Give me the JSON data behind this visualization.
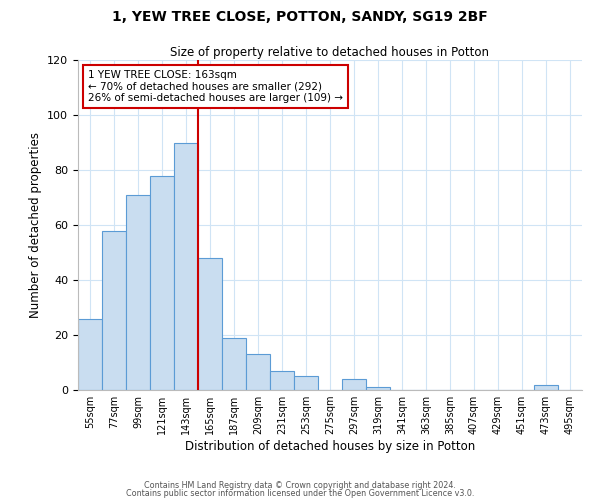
{
  "title_line1": "1, YEW TREE CLOSE, POTTON, SANDY, SG19 2BF",
  "title_line2": "Size of property relative to detached houses in Potton",
  "xlabel": "Distribution of detached houses by size in Potton",
  "ylabel": "Number of detached properties",
  "bar_labels": [
    "55sqm",
    "77sqm",
    "99sqm",
    "121sqm",
    "143sqm",
    "165sqm",
    "187sqm",
    "209sqm",
    "231sqm",
    "253sqm",
    "275sqm",
    "297sqm",
    "319sqm",
    "341sqm",
    "363sqm",
    "385sqm",
    "407sqm",
    "429sqm",
    "451sqm",
    "473sqm",
    "495sqm"
  ],
  "bar_values": [
    26,
    58,
    71,
    78,
    90,
    48,
    19,
    13,
    7,
    5,
    0,
    4,
    1,
    0,
    0,
    0,
    0,
    0,
    0,
    2,
    0
  ],
  "bar_color": "#c9ddf0",
  "bar_edge_color": "#5b9bd5",
  "marker_bar_index": 5,
  "marker_color": "#cc0000",
  "ylim": [
    0,
    120
  ],
  "yticks": [
    0,
    20,
    40,
    60,
    80,
    100,
    120
  ],
  "annotation_title": "1 YEW TREE CLOSE: 163sqm",
  "annotation_line2": "← 70% of detached houses are smaller (292)",
  "annotation_line3": "26% of semi-detached houses are larger (109) →",
  "annotation_box_color": "#ffffff",
  "annotation_box_edge": "#cc0000",
  "footer_line1": "Contains HM Land Registry data © Crown copyright and database right 2024.",
  "footer_line2": "Contains public sector information licensed under the Open Government Licence v3.0.",
  "background_color": "#ffffff",
  "grid_color": "#d0e4f5"
}
